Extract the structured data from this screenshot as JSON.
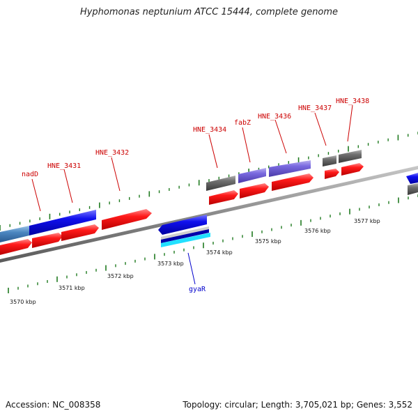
{
  "title": "Hyphomonas neptunium ATCC 15444, complete genome",
  "footer": {
    "accession": "Accession: NC_008358",
    "summary": "Topology: circular; Length: 3,705,021 bp; Genes: 3,552"
  },
  "colors": {
    "forward_cds": "#ee0000",
    "reverse_cds": "#0000dd",
    "gene_gray": "#666666",
    "gene_purple": "#7060d0",
    "gene_steel": "#4a86c0",
    "rna_cyan": "#22e0ff",
    "tick_green": "#1f7a1f",
    "backbone": "#888888",
    "label_red": "#cc0000",
    "label_blue": "#0000cc"
  },
  "kbp_labels": [
    "3570 kbp",
    "3571 kbp",
    "3572 kbp",
    "3573 kbp",
    "3574 kbp",
    "3575 kbp",
    "3576 kbp",
    "3577 kbp"
  ],
  "gene_labels": [
    {
      "name": "nadD",
      "color": "red"
    },
    {
      "name": "HNE_3431",
      "color": "red"
    },
    {
      "name": "HNE_3432",
      "color": "red"
    },
    {
      "name": "HNE_3434",
      "color": "red"
    },
    {
      "name": "fabZ",
      "color": "red"
    },
    {
      "name": "HNE_3436",
      "color": "red"
    },
    {
      "name": "HNE_3437",
      "color": "red"
    },
    {
      "name": "HNE_3438",
      "color": "red"
    },
    {
      "name": "gyaR",
      "color": "blue"
    }
  ]
}
